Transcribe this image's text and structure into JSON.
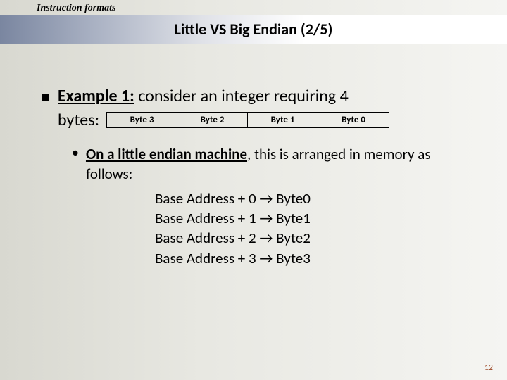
{
  "header": {
    "breadcrumb": "Instruction formats",
    "title": "Little VS Big Endian (2/5)"
  },
  "example": {
    "label": "Example 1:",
    "text_part1": " consider an integer requiring 4",
    "bytes_word": "bytes:",
    "byte_cells": [
      "Byte 3",
      "Byte 2",
      "Byte 1",
      "Byte 0"
    ]
  },
  "sub": {
    "bold_underline": "On a little endian machine",
    "after": ", this is arranged in memory as follows:",
    "lines": [
      "Base Address + 0 → Byte0",
      "Base Address + 1 → Byte1",
      "Base Address + 2 → Byte2",
      "Base Address + 3 → Byte3"
    ]
  },
  "page_number": "12",
  "colors": {
    "bg_left": "#d8d8d0",
    "bg_right": "#f5f5f2",
    "bar_left": "#7a86a0",
    "page_num": "#a05030"
  }
}
